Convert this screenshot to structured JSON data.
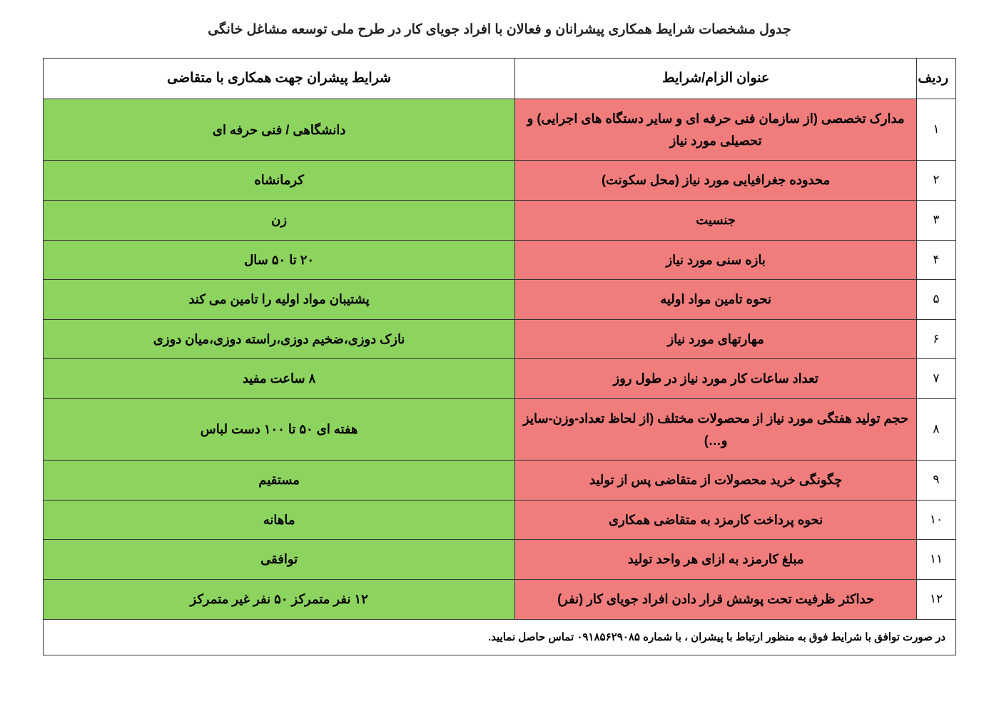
{
  "title": "جدول مشخصات شرایط همکاری پیشرانان و فعالان با افراد جویای کار در طرح ملی توسعه مشاغل خانگی",
  "headers": {
    "idx": "ردیف",
    "req": "عنوان الزام/شرایط",
    "cond": "شرایط پیشران جهت همکاری با متقاضی"
  },
  "colors": {
    "req_bg": "#f07d7c",
    "cond_bg": "#8dd35f"
  },
  "rows": [
    {
      "i": "۱",
      "req": "مدارک تخصصی (از سازمان فنی حرفه ای و سایر دستگاه های اجرایی) و تحصیلی مورد نیاز",
      "cond": "دانشگاهی / فنی حرفه ای"
    },
    {
      "i": "۲",
      "req": "محدوده جغرافیایی مورد نیاز (محل سکونت)",
      "cond": "کرمانشاه"
    },
    {
      "i": "۳",
      "req": "جنسیت",
      "cond": "زن"
    },
    {
      "i": "۴",
      "req": "بازه سنی مورد نیاز",
      "cond": "۲۰ تا ۵۰ سال"
    },
    {
      "i": "۵",
      "req": "نحوه تامین مواد اولیه",
      "cond": "پشتیبان مواد اولیه را تامین می کند"
    },
    {
      "i": "۶",
      "req": "مهارتهای مورد نیاز",
      "cond": "نازک دوزی،ضخیم دوزی،راسته دوزی،میان دوزی"
    },
    {
      "i": "۷",
      "req": "تعداد ساعات کار مورد نیاز در طول روز",
      "cond": "۸ ساعت مفید"
    },
    {
      "i": "۸",
      "req": "حجم تولید هفتگی مورد نیاز از محصولات مختلف (از لحاظ تعداد-وزن-سایز و…)",
      "cond": "هفته ای ۵۰ تا ۱۰۰ دست لباس"
    },
    {
      "i": "۹",
      "req": "چگونگی خرید محصولات از متقاضی پس از تولید",
      "cond": "مستقیم"
    },
    {
      "i": "۱۰",
      "req": "نحوه پرداخت کارمزد به متقاضی همکاری",
      "cond": "ماهانه"
    },
    {
      "i": "۱۱",
      "req": "مبلغ کارمزد به ازای هر واحد تولید",
      "cond": "توافقی"
    },
    {
      "i": "۱۲",
      "req": "حداکثر ظرفیت تحت پوشش قرار دادن افراد جویای کار (نفر)",
      "cond": "۱۲ نفر متمرکز ۵۰ نفر غیر متمرکز"
    }
  ],
  "footer": {
    "pre": "در صورت توافق با شرایط فوق به منظور ارتباط با پیشران ، با شماره ",
    "phone": "۰۹۱۸۵۶۲۹۰۸۵",
    "post": " تماس حاصل نمایید."
  }
}
